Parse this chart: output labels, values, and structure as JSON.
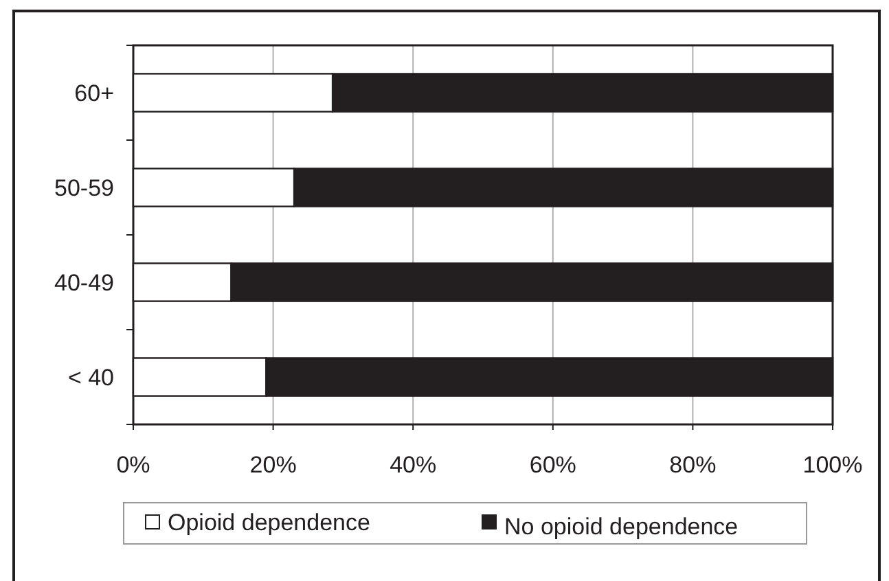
{
  "chart_data": {
    "type": "bar",
    "orientation": "horizontal",
    "stacked": true,
    "categories": [
      "60+",
      "50-59",
      "40-49",
      "< 40"
    ],
    "series": [
      {
        "name": "Opioid dependence",
        "color": "#ffffff",
        "values": [
          28.5,
          23,
          14,
          19
        ]
      },
      {
        "name": "No opioid dependence",
        "color": "#231f20",
        "values": [
          71.5,
          77,
          86,
          81
        ]
      }
    ],
    "xlim": [
      0,
      100
    ],
    "xticks": [
      {
        "value": 0,
        "label": "0%"
      },
      {
        "value": 20,
        "label": "20%"
      },
      {
        "value": 40,
        "label": "40%"
      },
      {
        "value": 60,
        "label": "60%"
      },
      {
        "value": 80,
        "label": "80%"
      },
      {
        "value": 100,
        "label": "100%"
      }
    ],
    "grid": "x",
    "legend": "bottom"
  }
}
